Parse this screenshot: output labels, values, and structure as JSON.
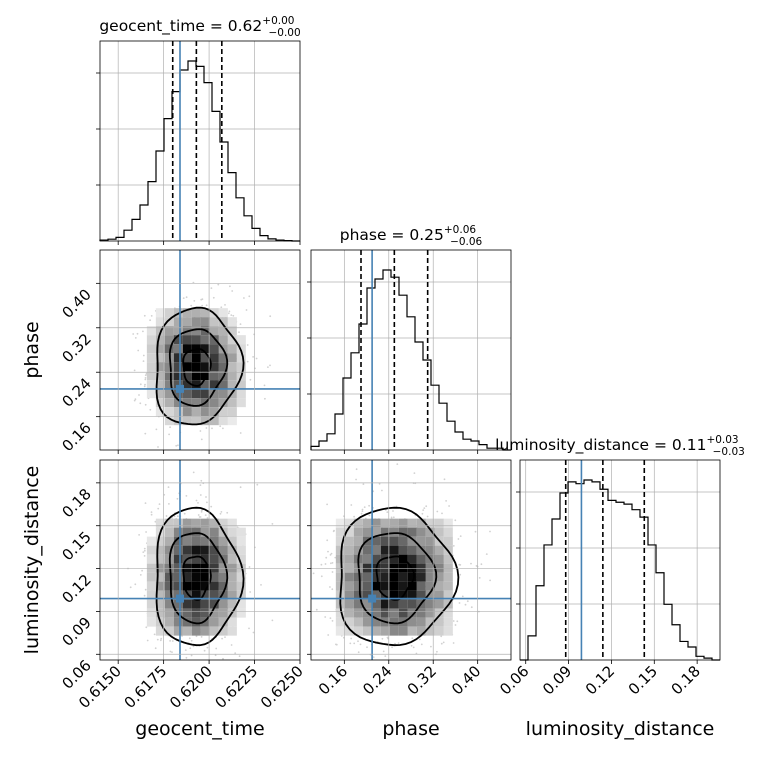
{
  "chart_data": {
    "type": "corner",
    "parameters": [
      {
        "name": "geocent_time",
        "title_prefix": "geocent_time = 0.62",
        "title_plus": "+0.00",
        "title_minus": "−0.00",
        "axis_label": "geocent_time",
        "range": [
          0.614,
          0.625
        ],
        "ticks": [
          "0.6150",
          "0.6175",
          "0.6200",
          "0.6225",
          "0.6250"
        ],
        "tick_values": [
          0.615,
          0.6175,
          0.62,
          0.6225,
          0.625
        ],
        "truth": 0.6184,
        "quantiles": [
          0.618,
          0.6193,
          0.6207
        ],
        "hist": {
          "edges": [
            0.614,
            0.61444,
            0.61488,
            0.61532,
            0.61576,
            0.6162,
            0.61664,
            0.61708,
            0.61752,
            0.61796,
            0.6184,
            0.61884,
            0.61928,
            0.61972,
            0.62016,
            0.6206,
            0.62104,
            0.62148,
            0.62192,
            0.62236,
            0.6228,
            0.62324,
            0.62368,
            0.62412,
            0.62456,
            0.625
          ],
          "counts": [
            0.005,
            0.01,
            0.02,
            0.06,
            0.12,
            0.2,
            0.33,
            0.5,
            0.68,
            0.83,
            0.95,
            1.0,
            0.97,
            0.88,
            0.72,
            0.55,
            0.38,
            0.24,
            0.14,
            0.07,
            0.03,
            0.012,
            0.005,
            0.002,
            0.0
          ]
        }
      },
      {
        "name": "phase",
        "title_prefix": "phase = 0.25",
        "title_plus": "+0.06",
        "title_minus": "−0.06",
        "axis_label": "phase",
        "range": [
          0.1,
          0.46
        ],
        "ticks": [
          "0.16",
          "0.24",
          "0.32",
          "0.40"
        ],
        "tick_values": [
          0.16,
          0.24,
          0.32,
          0.4
        ],
        "truth": 0.21,
        "quantiles": [
          0.19,
          0.25,
          0.31
        ],
        "hist": {
          "edges": [
            0.1,
            0.1144,
            0.1288,
            0.1432,
            0.1576,
            0.172,
            0.1864,
            0.2008,
            0.2152,
            0.2296,
            0.244,
            0.2584,
            0.2728,
            0.2872,
            0.3016,
            0.316,
            0.3304,
            0.3448,
            0.3592,
            0.3736,
            0.388,
            0.4024,
            0.4168,
            0.4312,
            0.4456,
            0.46
          ],
          "counts": [
            0.02,
            0.05,
            0.09,
            0.2,
            0.4,
            0.54,
            0.7,
            0.9,
            0.95,
            1.0,
            0.96,
            0.86,
            0.74,
            0.6,
            0.5,
            0.36,
            0.26,
            0.16,
            0.1,
            0.06,
            0.05,
            0.03,
            0.01,
            0.01,
            0.0
          ]
        }
      },
      {
        "name": "luminosity_distance",
        "title_prefix": "luminosity_distance = 0.11",
        "title_plus": "+0.03",
        "title_minus": "−0.03",
        "axis_label": "luminosity_distance",
        "range": [
          0.056,
          0.196
        ],
        "ticks": [
          "0.06",
          "0.09",
          "0.12",
          "0.15",
          "0.18"
        ],
        "tick_values": [
          0.06,
          0.09,
          0.12,
          0.15,
          0.18
        ],
        "truth": 0.099,
        "quantiles": [
          0.088,
          0.114,
          0.143
        ],
        "hist": {
          "edges": [
            0.056,
            0.0616,
            0.0672,
            0.0728,
            0.0784,
            0.084,
            0.0896,
            0.0952,
            0.1008,
            0.1064,
            0.112,
            0.1176,
            0.1232,
            0.1288,
            0.1344,
            0.14,
            0.1456,
            0.1512,
            0.1568,
            0.1624,
            0.168,
            0.1736,
            0.1792,
            0.1848,
            0.1904,
            0.196
          ],
          "counts": [
            0.0,
            0.13,
            0.4,
            0.62,
            0.76,
            0.9,
            0.96,
            0.95,
            0.97,
            0.96,
            0.92,
            0.86,
            0.85,
            0.84,
            0.81,
            0.77,
            0.62,
            0.47,
            0.3,
            0.19,
            0.1,
            0.07,
            0.02,
            0.01,
            0.0
          ]
        }
      }
    ],
    "contour_levels": [
      "0.39",
      "0.86",
      "0.99"
    ],
    "grid": true,
    "colors": {
      "truth": "#4682b4",
      "hist": "#000000",
      "quantile": "#000000",
      "grid": "#b0b0b0",
      "density_dark": "#000000",
      "points": "#9a9a9a"
    }
  }
}
